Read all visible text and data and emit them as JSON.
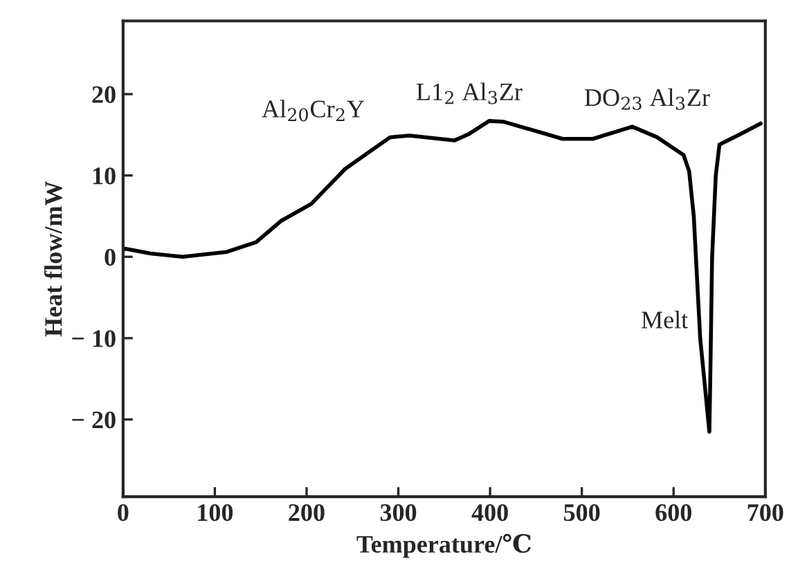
{
  "chart_data": {
    "type": "line",
    "xlabel": "Temperature/℃",
    "ylabel": "Heat flow/mW",
    "x": [
      0,
      2,
      30,
      65,
      113,
      145,
      172,
      205,
      242,
      291,
      312,
      361,
      377,
      399,
      415,
      479,
      512,
      555,
      582,
      611,
      617,
      622,
      629,
      639,
      640,
      642,
      646,
      650,
      673,
      695
    ],
    "series": [
      {
        "color": "#000000",
        "values": [
          0.8,
          1.0,
          0.4,
          0,
          0.6,
          1.8,
          4.4,
          6.5,
          10.8,
          14.7,
          14.9,
          14.3,
          15.1,
          16.7,
          16.6,
          14.5,
          14.5,
          16.0,
          14.7,
          12.5,
          10.5,
          5,
          -10,
          -21.5,
          -15,
          0,
          10,
          13.8,
          15.1,
          16.4
        ]
      }
    ],
    "xlim": [
      0,
      700
    ],
    "ylim": [
      -29.5,
      29
    ],
    "xticks": [
      0,
      100,
      200,
      300,
      400,
      500,
      600,
      700
    ],
    "yticks": [
      {
        "value": -20,
        "label": "− 20"
      },
      {
        "value": -10,
        "label": "− 10"
      },
      0,
      10,
      20
    ],
    "grid": false,
    "legend": false,
    "marker": "none",
    "line_style": "solid",
    "annotations": [
      "Al$_{20}$Cr$_{2}$Y",
      "L1$_{2}$ Al$_{3}$Zr",
      "DO$_{23}$ Al$_{3}$Zr",
      "Melt"
    ]
  }
}
